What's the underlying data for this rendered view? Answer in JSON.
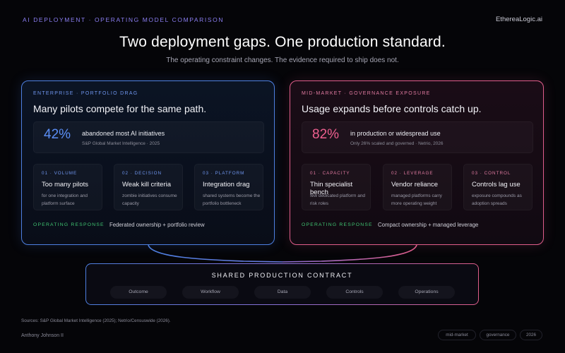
{
  "header": {
    "eyebrow": "AI DEPLOYMENT · OPERATING MODEL COMPARISON",
    "brand": "EthereaLogic.ai",
    "headline": "Two deployment gaps. One production standard.",
    "subhead": "The operating constraint changes. The evidence required to ship does not."
  },
  "enterprise": {
    "eyebrow": "ENTERPRISE · PORTFOLIO DRAG",
    "title": "Many pilots compete for the same path.",
    "stat": {
      "value": "42%",
      "label": "abandoned most AI initiatives",
      "source": "S&P Global Market Intelligence · 2025"
    },
    "cards": [
      {
        "key": "01 · VOLUME",
        "title": "Too many pilots",
        "desc": "for one integration and platform surface"
      },
      {
        "key": "02 · DECISION",
        "title": "Weak kill criteria",
        "desc": "zombie initiatives consume capacity"
      },
      {
        "key": "03 · PLATFORM",
        "title": "Integration drag",
        "desc": "shared systems become the portfolio bottleneck"
      }
    ],
    "response_label": "OPERATING RESPONSE",
    "response_value": "Federated ownership + portfolio review",
    "accent": "#4d7fe0"
  },
  "midmarket": {
    "eyebrow": "MID-MARKET · GOVERNANCE EXPOSURE",
    "title": "Usage expands before controls catch up.",
    "stat": {
      "value": "82%",
      "label": "in production or widespread use",
      "source": "Only 26% scaled and governed · Netrio, 2026"
    },
    "cards": [
      {
        "key": "01 · CAPACITY",
        "title": "Thin specialist bench",
        "desc": "few dedicated platform and risk roles"
      },
      {
        "key": "02 · LEVERAGE",
        "title": "Vendor reliance",
        "desc": "managed platforms carry more operating weight"
      },
      {
        "key": "03 · CONTROL",
        "title": "Controls lag use",
        "desc": "exposure compounds as adoption spreads"
      }
    ],
    "response_label": "OPERATING RESPONSE",
    "response_value": "Compact ownership + managed leverage",
    "accent": "#df5d8a"
  },
  "contract": {
    "title": "SHARED PRODUCTION CONTRACT",
    "items": [
      "Outcome",
      "Workflow",
      "Data",
      "Controls",
      "Operations"
    ]
  },
  "footer": {
    "sources": "Sources: S&P Global Market Intelligence (2025); Netrio/Censuswide (2026).",
    "author": "Anthony Johnson II",
    "tags": [
      "mid-market",
      "governance",
      "2026"
    ]
  }
}
